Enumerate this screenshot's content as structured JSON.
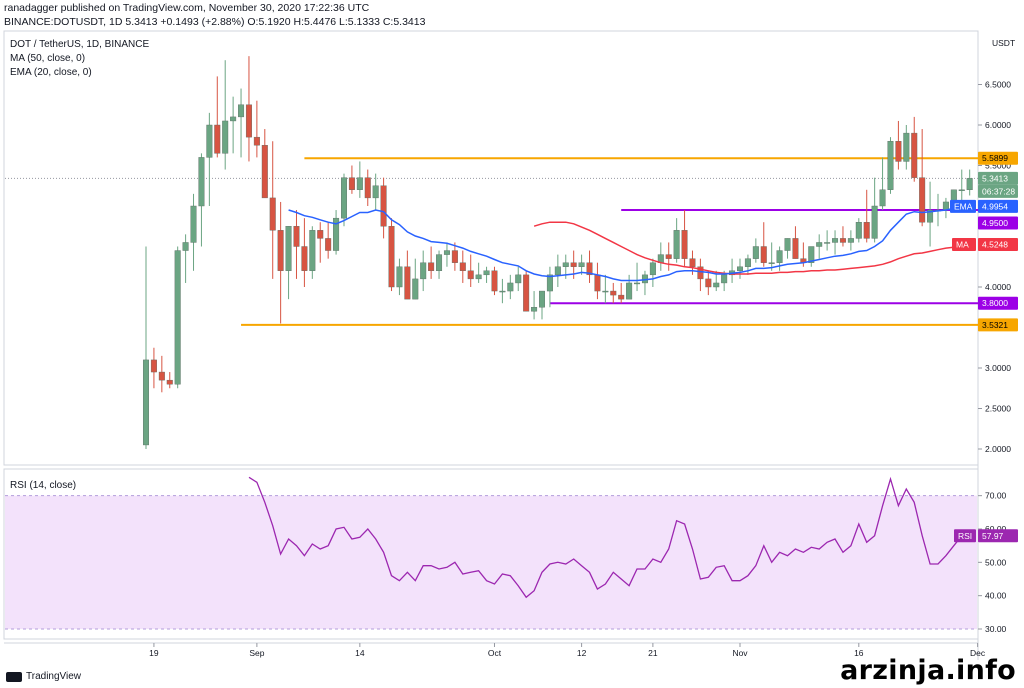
{
  "header": {
    "line1": "ranadagger published on TradingView.com, November 30, 2020 17:22:36 UTC",
    "line2_symbol": "BINANCE:DOTUSDT, 1D",
    "line2_price": "5.3413",
    "line2_change": "+0.1493 (+2.88%)",
    "line2_ohlc": "O:5.1920 H:5.4476 L:5.1333 C:5.3413"
  },
  "legend": {
    "title": "DOT / TetherUS, 1D, BINANCE",
    "ma": "MA (50, close, 0)",
    "ema": "EMA (20, close, 0)",
    "rsi": "RSI (14, close)"
  },
  "axis": {
    "currency": "USDT",
    "price_ticks": [
      "6.5000",
      "6.0000",
      "5.5000",
      "5.0000",
      "4.5000",
      "4.0000",
      "3.5000",
      "3.0000",
      "2.5000",
      "2.0000"
    ],
    "rsi_ticks": [
      "70.00",
      "60.00",
      "50.00",
      "40.00",
      "30.00"
    ],
    "x_ticks": [
      "19",
      "Sep",
      "14",
      "Oct",
      "12",
      "21",
      "Nov",
      "16",
      "Dec"
    ]
  },
  "tags": {
    "level_5_5899": "5.5899",
    "last_price": "5.3413",
    "countdown": "06:37:28",
    "ema_label": "EMA",
    "ema_value": "4.9954",
    "level_4_95": "4.9500",
    "ma_label": "MA",
    "ma_value": "4.5248",
    "level_3_80": "3.8000",
    "level_3_5321": "3.5321",
    "rsi_label": "RSI",
    "rsi_value": "57.97"
  },
  "footer": {
    "brand": "TradingView",
    "watermark": "arzinja.info"
  },
  "colors": {
    "up": "#6ba583",
    "down": "#d75442",
    "orange": "#f7a600",
    "purple": "#9c00e6",
    "ema": "#2962ff",
    "ma": "#f23645",
    "rsi": "#9c27b0",
    "rsi_band": "#f3e2fb"
  },
  "chart_data": [
    {
      "type": "candlestick",
      "title": "DOT / TetherUS, 1D, BINANCE",
      "x": [
        "08-18",
        "08-19",
        "08-20",
        "08-21",
        "08-22",
        "08-23",
        "08-24",
        "08-25",
        "08-26",
        "08-27",
        "08-28",
        "08-29",
        "08-30",
        "08-31",
        "09-01",
        "09-02",
        "09-03",
        "09-04",
        "09-05",
        "09-06",
        "09-07",
        "09-08",
        "09-09",
        "09-10",
        "09-11",
        "09-12",
        "09-13",
        "09-14",
        "09-15",
        "09-16",
        "09-17",
        "09-18",
        "09-19",
        "09-20",
        "09-21",
        "09-22",
        "09-23",
        "09-24",
        "09-25",
        "09-26",
        "09-27",
        "09-28",
        "09-29",
        "09-30",
        "10-01",
        "10-02",
        "10-03",
        "10-04",
        "10-05",
        "10-06",
        "10-07",
        "10-08",
        "10-09",
        "10-10",
        "10-11",
        "10-12",
        "10-13",
        "10-14",
        "10-15",
        "10-16",
        "10-17",
        "10-18",
        "10-19",
        "10-20",
        "10-21",
        "10-22",
        "10-23",
        "10-24",
        "10-25",
        "10-26",
        "10-27",
        "10-28",
        "10-29",
        "10-30",
        "10-31",
        "11-01",
        "11-02",
        "11-03",
        "11-04",
        "11-05",
        "11-06",
        "11-07",
        "11-08",
        "11-09",
        "11-10",
        "11-11",
        "11-12",
        "11-13",
        "11-14",
        "11-15",
        "11-16",
        "11-17",
        "11-18",
        "11-19",
        "11-20",
        "11-21",
        "11-22",
        "11-23",
        "11-24",
        "11-25",
        "11-26",
        "11-27",
        "11-28",
        "11-29",
        "11-30"
      ],
      "open": [
        2.05,
        3.1,
        2.95,
        2.85,
        2.8,
        4.45,
        4.55,
        5.0,
        5.6,
        6.0,
        5.65,
        6.05,
        6.1,
        6.25,
        5.85,
        5.75,
        5.1,
        4.7,
        4.2,
        4.75,
        4.5,
        4.2,
        4.7,
        4.6,
        4.45,
        4.85,
        5.35,
        5.2,
        5.35,
        5.1,
        5.25,
        4.75,
        4.0,
        4.25,
        3.85,
        4.1,
        4.3,
        4.2,
        4.4,
        4.45,
        4.3,
        4.2,
        4.1,
        4.15,
        4.2,
        3.95,
        3.95,
        4.05,
        4.15,
        3.7,
        3.75,
        3.95,
        4.15,
        4.25,
        4.3,
        4.25,
        4.3,
        4.15,
        3.95,
        3.95,
        3.9,
        3.85,
        4.05,
        4.05,
        4.15,
        4.3,
        4.4,
        4.35,
        4.7,
        4.35,
        4.25,
        4.1,
        4.0,
        4.05,
        4.15,
        4.2,
        4.25,
        4.35,
        4.5,
        4.3,
        4.3,
        4.45,
        4.6,
        4.35,
        4.3,
        4.5,
        4.55,
        4.55,
        4.6,
        4.55,
        4.6,
        4.8,
        4.6,
        5.0,
        5.2,
        5.8,
        5.55,
        5.9,
        5.35,
        4.8,
        4.95,
        4.95,
        5.05,
        5.2,
        5.2
      ],
      "high": [
        4.5,
        3.25,
        3.15,
        2.95,
        4.5,
        4.65,
        5.15,
        5.65,
        6.15,
        6.6,
        6.8,
        6.35,
        6.45,
        6.85,
        6.3,
        5.95,
        5.8,
        5.05,
        4.75,
        4.95,
        4.85,
        4.75,
        4.8,
        4.8,
        4.95,
        5.4,
        5.5,
        5.55,
        5.45,
        5.4,
        5.35,
        4.85,
        4.35,
        4.45,
        4.35,
        4.45,
        4.5,
        4.45,
        4.55,
        4.55,
        4.45,
        4.4,
        4.3,
        4.25,
        4.25,
        4.1,
        4.15,
        4.25,
        4.2,
        3.95,
        3.95,
        4.25,
        4.4,
        4.4,
        4.45,
        4.4,
        4.45,
        4.3,
        4.15,
        4.05,
        4.05,
        4.15,
        4.3,
        4.2,
        4.35,
        4.55,
        4.55,
        4.85,
        4.95,
        4.45,
        4.35,
        4.2,
        4.2,
        4.2,
        4.35,
        4.35,
        4.4,
        4.6,
        4.8,
        4.55,
        4.5,
        4.6,
        4.75,
        4.55,
        4.5,
        4.65,
        4.7,
        4.7,
        4.75,
        4.7,
        4.85,
        5.2,
        5.35,
        5.6,
        5.85,
        6.05,
        6.0,
        6.1,
        5.95,
        5.3,
        5.15,
        5.1,
        5.2,
        5.45,
        5.45
      ],
      "low": [
        2.0,
        2.75,
        2.7,
        2.75,
        2.75,
        4.05,
        4.2,
        4.5,
        5.0,
        5.6,
        5.45,
        5.65,
        5.6,
        5.55,
        5.6,
        5.1,
        4.1,
        3.55,
        3.85,
        4.1,
        4.0,
        4.1,
        4.3,
        4.35,
        4.4,
        4.75,
        5.15,
        5.1,
        5.0,
        4.95,
        4.6,
        3.95,
        3.9,
        3.9,
        3.85,
        3.95,
        4.1,
        4.1,
        4.25,
        4.2,
        4.05,
        4.0,
        4.05,
        4.05,
        3.9,
        3.8,
        3.85,
        3.95,
        3.7,
        3.6,
        3.6,
        3.75,
        4.0,
        4.1,
        4.1,
        4.15,
        4.05,
        3.85,
        3.8,
        3.8,
        3.8,
        3.85,
        3.95,
        3.9,
        4.0,
        4.2,
        4.2,
        4.3,
        4.25,
        4.15,
        3.95,
        3.9,
        3.95,
        3.95,
        4.05,
        4.1,
        4.15,
        4.3,
        4.25,
        4.2,
        4.2,
        4.35,
        4.35,
        4.25,
        4.25,
        4.35,
        4.45,
        4.4,
        4.5,
        4.45,
        4.55,
        4.55,
        4.55,
        4.95,
        5.15,
        5.45,
        5.45,
        5.3,
        4.75,
        4.5,
        4.75,
        4.85,
        4.95,
        5.05,
        5.13
      ],
      "close": [
        3.1,
        2.95,
        2.85,
        2.8,
        4.45,
        4.55,
        5.0,
        5.6,
        6.0,
        5.65,
        6.05,
        6.1,
        6.25,
        5.85,
        5.75,
        5.1,
        4.7,
        4.2,
        4.75,
        4.5,
        4.2,
        4.7,
        4.6,
        4.45,
        4.85,
        5.35,
        5.2,
        5.35,
        5.1,
        5.25,
        4.75,
        4.0,
        4.25,
        3.85,
        4.1,
        4.3,
        4.2,
        4.4,
        4.45,
        4.3,
        4.2,
        4.1,
        4.15,
        4.2,
        3.95,
        3.95,
        4.05,
        4.15,
        3.7,
        3.75,
        3.95,
        4.15,
        4.25,
        4.3,
        4.25,
        4.3,
        4.15,
        3.95,
        3.95,
        3.9,
        3.85,
        4.05,
        4.05,
        4.15,
        4.3,
        4.4,
        4.35,
        4.7,
        4.35,
        4.25,
        4.1,
        4.0,
        4.05,
        4.15,
        4.2,
        4.25,
        4.35,
        4.5,
        4.3,
        4.3,
        4.45,
        4.6,
        4.35,
        4.3,
        4.5,
        4.55,
        4.55,
        4.6,
        4.55,
        4.6,
        4.8,
        4.6,
        5.0,
        5.2,
        5.8,
        5.55,
        5.9,
        5.35,
        4.8,
        4.95,
        4.95,
        5.05,
        5.2,
        5.2,
        5.3413
      ],
      "ema20": [
        null,
        null,
        null,
        null,
        null,
        null,
        null,
        null,
        null,
        null,
        null,
        null,
        null,
        null,
        null,
        null,
        null,
        null,
        4.95,
        4.92,
        4.88,
        4.86,
        4.83,
        4.8,
        4.78,
        4.82,
        4.87,
        4.92,
        4.92,
        4.95,
        4.93,
        4.83,
        4.77,
        4.68,
        4.63,
        4.6,
        4.56,
        4.55,
        4.54,
        4.51,
        4.48,
        4.44,
        4.41,
        4.38,
        4.34,
        4.3,
        4.28,
        4.26,
        4.2,
        4.16,
        4.14,
        4.13,
        4.14,
        4.15,
        4.16,
        4.18,
        4.17,
        4.15,
        4.13,
        4.1,
        4.08,
        4.08,
        4.08,
        4.09,
        4.1,
        4.13,
        4.15,
        4.19,
        4.2,
        4.2,
        4.19,
        4.18,
        4.16,
        4.16,
        4.17,
        4.18,
        4.2,
        4.23,
        4.23,
        4.24,
        4.26,
        4.28,
        4.29,
        4.3,
        4.32,
        4.34,
        4.36,
        4.38,
        4.39,
        4.41,
        4.44,
        4.45,
        4.5,
        4.57,
        4.7,
        4.8,
        4.9,
        4.93,
        4.92,
        4.93,
        4.94,
        4.95,
        4.97,
        4.98,
        4.9954
      ],
      "ma50": [
        null,
        null,
        null,
        null,
        null,
        null,
        null,
        null,
        null,
        null,
        null,
        null,
        null,
        null,
        null,
        null,
        null,
        null,
        null,
        null,
        null,
        null,
        null,
        null,
        null,
        null,
        null,
        null,
        null,
        null,
        null,
        null,
        null,
        null,
        null,
        null,
        null,
        null,
        null,
        null,
        null,
        null,
        null,
        null,
        null,
        null,
        null,
        null,
        null,
        4.75,
        4.78,
        4.8,
        4.8,
        4.8,
        4.78,
        4.74,
        4.7,
        4.65,
        4.6,
        4.55,
        4.5,
        4.45,
        4.4,
        4.36,
        4.33,
        4.3,
        4.28,
        4.27,
        4.25,
        4.24,
        4.22,
        4.2,
        4.18,
        4.17,
        4.16,
        4.16,
        4.16,
        4.17,
        4.17,
        4.17,
        4.18,
        4.18,
        4.19,
        4.19,
        4.2,
        4.2,
        4.21,
        4.21,
        4.22,
        4.23,
        4.24,
        4.25,
        4.26,
        4.28,
        4.31,
        4.35,
        4.38,
        4.41,
        4.42,
        4.44,
        4.46,
        4.48,
        4.49,
        4.51,
        4.5248
      ],
      "levels": [
        5.5899,
        4.95,
        3.8,
        3.5321
      ],
      "ylim": [
        1.9,
        7.1
      ]
    },
    {
      "type": "line",
      "title": "RSI (14, close)",
      "x_start": "08-31",
      "values": [
        75.5,
        74,
        68,
        61,
        52.5,
        57,
        55,
        52,
        55.5,
        54,
        55,
        60,
        60.5,
        57,
        57.5,
        60,
        57,
        53,
        46,
        44.5,
        47,
        44.5,
        49,
        49,
        48,
        48.5,
        50,
        46.5,
        47,
        47.5,
        44.5,
        43.5,
        46.5,
        46,
        43,
        39.5,
        41.5,
        47,
        49.5,
        50,
        49.5,
        51,
        49,
        47,
        42,
        43.5,
        47,
        45,
        43,
        48,
        48,
        51,
        50,
        54,
        62.5,
        61.5,
        54,
        45,
        45.5,
        48.5,
        49,
        44.5,
        44.5,
        46,
        49,
        55,
        50,
        53,
        52,
        54,
        53,
        54.5,
        54,
        56,
        57,
        53,
        55,
        61.5,
        56,
        58,
        67,
        75,
        67,
        72,
        68,
        58,
        49.5,
        49.5,
        52,
        55,
        57.97
      ],
      "ylim": [
        27,
        78
      ],
      "band": [
        30,
        70
      ]
    }
  ]
}
